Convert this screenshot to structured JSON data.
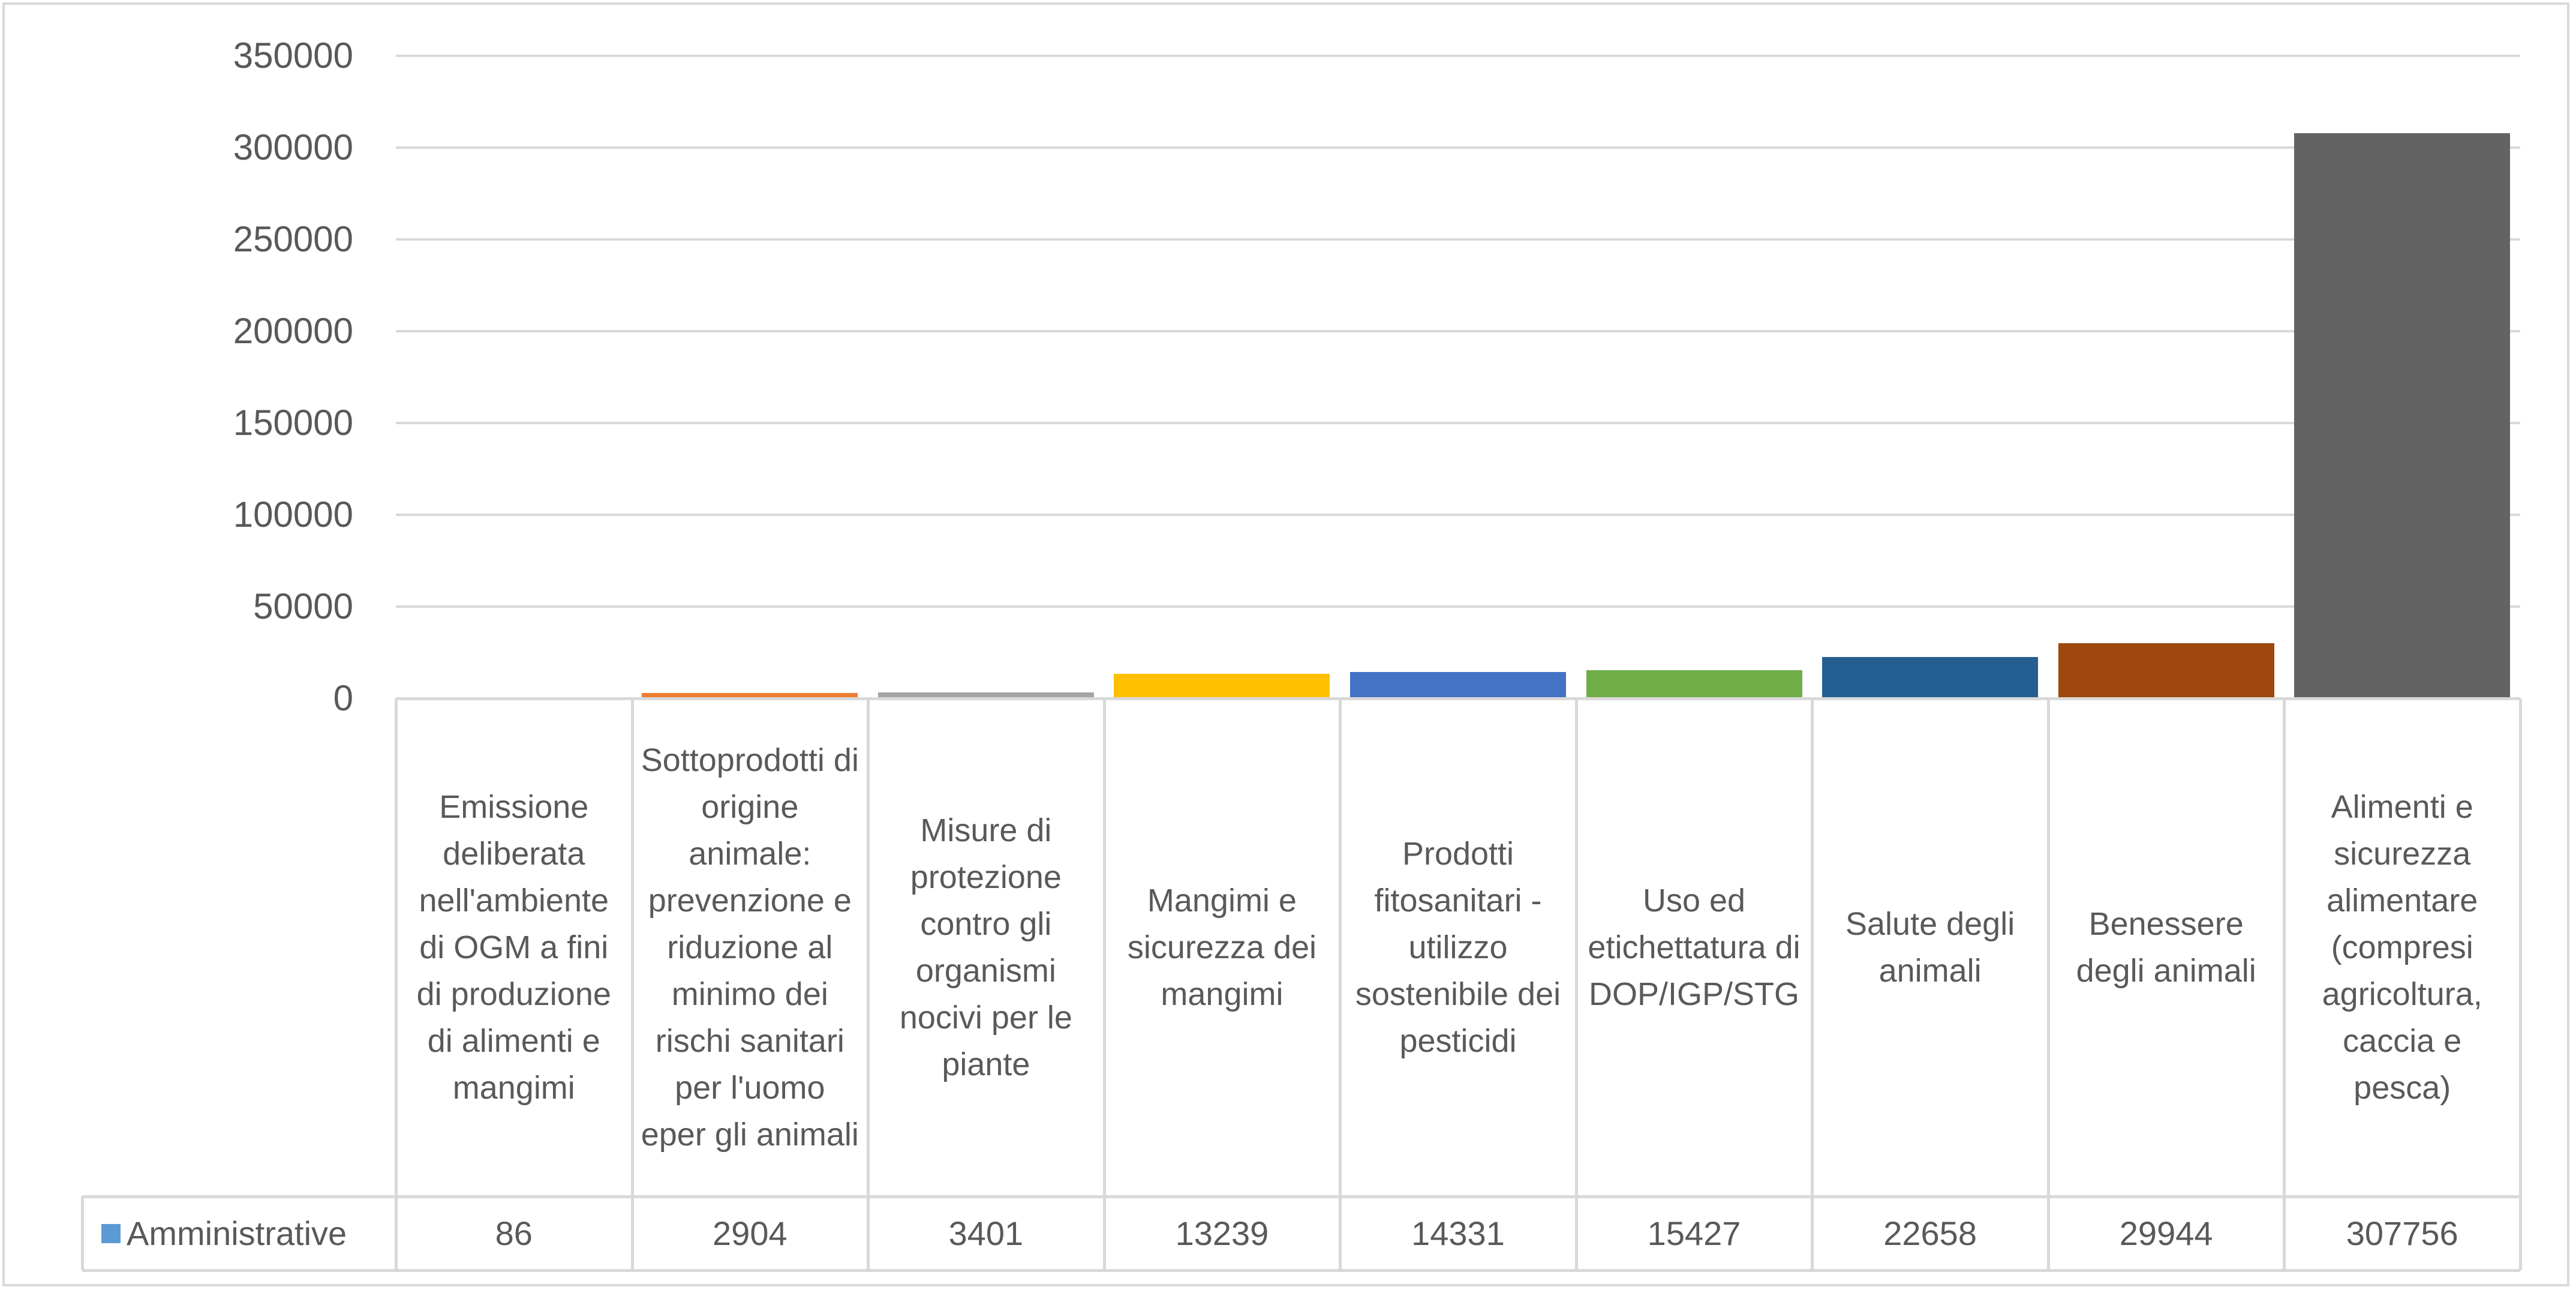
{
  "chart_data": {
    "type": "bar",
    "title": "",
    "xlabel": "",
    "ylabel": "",
    "ylim": [
      0,
      350000
    ],
    "yticks": [
      0,
      50000,
      100000,
      150000,
      200000,
      250000,
      300000,
      350000
    ],
    "ytick_labels": [
      "0",
      "50000",
      "100000",
      "150000",
      "200000",
      "250000",
      "300000",
      "350000"
    ],
    "grid": true,
    "legend": "data-table-left",
    "categories": [
      "Emissione deliberata nell'ambiente di OGM a fini di produzione di alimenti e mangimi",
      "Sottoprodotti di origine animale: prevenzione e riduzione al minimo dei rischi sanitari per l'uomo eper gli animali",
      "Misure di protezione contro gli organismi nocivi per le piante",
      "Mangimi e sicurezza dei mangimi",
      "Prodotti fitosanitari - utilizzo sostenibile dei pesticidi",
      "Uso ed etichettatura di DOP/IGP/STG",
      "Salute degli animali",
      "Benessere degli animali",
      "Alimenti e sicurezza alimentare (compresi agricoltura, caccia e pesca)"
    ],
    "series": [
      {
        "name": "Amministrative",
        "legend_color": "#5B9BD5",
        "values": [
          86,
          2904,
          3401,
          13239,
          14331,
          15427,
          22658,
          29944,
          307756
        ],
        "value_labels": [
          "86",
          "2904",
          "3401",
          "13239",
          "14331",
          "15427",
          "22658",
          "29944",
          "307756"
        ],
        "colors": [
          "#5B9BD5",
          "#ED7D31",
          "#A5A5A5",
          "#FFC000",
          "#4472C4",
          "#70AD47",
          "#255E91",
          "#9E480E",
          "#636363"
        ]
      }
    ]
  }
}
